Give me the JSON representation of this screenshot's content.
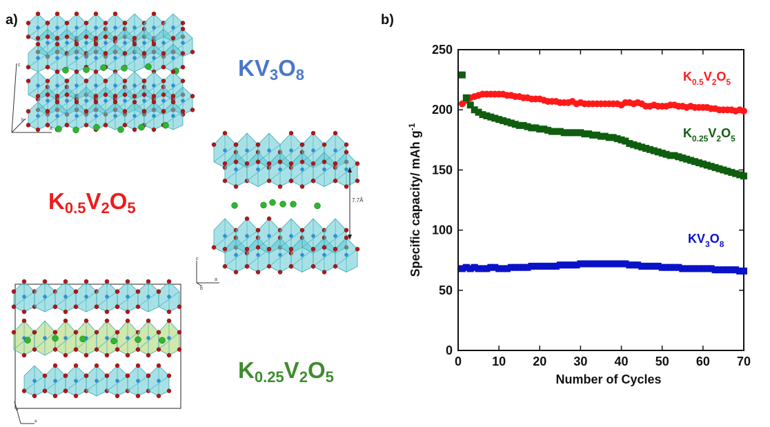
{
  "panels": {
    "a": "a)",
    "b": "b)"
  },
  "structures": {
    "kv3o8": {
      "base": "KV",
      "s1": "3",
      "o": "O",
      "s2": "8",
      "color": "#4a78c8"
    },
    "k05": {
      "k": "K",
      "s1": "0.5",
      "v": "V",
      "s2": "2",
      "o": "O",
      "s3": "5",
      "color": "#ee1c1c"
    },
    "k025": {
      "k": "K",
      "s1": "0.25",
      "v": "V",
      "s2": "2",
      "o": "O",
      "s3": "5",
      "color": "#3f8c2f"
    },
    "spacing_label": "7.7Å",
    "axes_labels": {
      "a": "a",
      "b": "b",
      "c": "c"
    }
  },
  "chart_data": {
    "type": "scatter",
    "xlabel": "Number of Cycles",
    "ylabel": "Specific capacity/ mAh g",
    "ylabel_sup": "-1",
    "xlim": [
      0,
      70
    ],
    "ylim": [
      0,
      250
    ],
    "xticks": [
      0,
      10,
      20,
      30,
      40,
      50,
      60,
      70
    ],
    "yticks": [
      0,
      50,
      100,
      150,
      200,
      250
    ],
    "series": [
      {
        "name": "K0.5V2O5",
        "color": "#ff1a1a",
        "marker": "circle",
        "x": [
          1,
          2,
          3,
          4,
          5,
          6,
          7,
          8,
          9,
          10,
          11,
          12,
          13,
          14,
          15,
          16,
          17,
          18,
          19,
          20,
          21,
          22,
          23,
          24,
          25,
          26,
          27,
          28,
          29,
          30,
          31,
          32,
          33,
          34,
          35,
          36,
          37,
          38,
          39,
          40,
          41,
          42,
          43,
          44,
          45,
          46,
          47,
          48,
          49,
          50,
          51,
          52,
          53,
          54,
          55,
          56,
          57,
          58,
          59,
          60,
          61,
          62,
          63,
          64,
          65,
          66,
          67,
          68,
          69,
          70
        ],
        "values": [
          205,
          208,
          210,
          211,
          212,
          213,
          213,
          213,
          213,
          213,
          213,
          212,
          212,
          211,
          211,
          210,
          210,
          209,
          209,
          209,
          208,
          207,
          207,
          207,
          206,
          206,
          206,
          207,
          205,
          206,
          205,
          205,
          205,
          205,
          205,
          205,
          205,
          205,
          205,
          204,
          206,
          206,
          205,
          206,
          205,
          203,
          203,
          204,
          203,
          203,
          203,
          204,
          204,
          203,
          203,
          202,
          203,
          202,
          202,
          202,
          202,
          201,
          201,
          200,
          200,
          200,
          200,
          199,
          200,
          199
        ],
        "legend_parts": {
          "k": "K",
          "s1": "0.5",
          "v": "V",
          "s2": "2",
          "o": "O",
          "s3": "5"
        }
      },
      {
        "name": "K0.25V2O5",
        "color": "#0f5e0f",
        "marker": "square",
        "x": [
          1,
          2,
          3,
          4,
          5,
          6,
          7,
          8,
          9,
          10,
          11,
          12,
          13,
          14,
          15,
          16,
          17,
          18,
          19,
          20,
          21,
          22,
          23,
          24,
          25,
          26,
          27,
          28,
          29,
          30,
          31,
          32,
          33,
          34,
          35,
          36,
          37,
          38,
          39,
          40,
          41,
          42,
          43,
          44,
          45,
          46,
          47,
          48,
          49,
          50,
          51,
          52,
          53,
          54,
          55,
          56,
          57,
          58,
          59,
          60,
          61,
          62,
          63,
          64,
          65,
          66,
          67,
          68,
          69,
          70
        ],
        "values": [
          229,
          210,
          204,
          200,
          198,
          196,
          195,
          194,
          193,
          192,
          191,
          190,
          189,
          188,
          187,
          187,
          186,
          185,
          185,
          184,
          184,
          183,
          182,
          182,
          182,
          181,
          181,
          181,
          181,
          181,
          180,
          180,
          179,
          179,
          178,
          178,
          177,
          177,
          176,
          175,
          174,
          172,
          171,
          170,
          169,
          168,
          167,
          166,
          165,
          164,
          163,
          162,
          162,
          161,
          160,
          159,
          158,
          157,
          156,
          155,
          154,
          153,
          152,
          151,
          150,
          149,
          148,
          147,
          146,
          145
        ],
        "legend_parts": {
          "k": "K",
          "s1": "0.25",
          "v": "V",
          "s2": "2",
          "o": "O",
          "s3": "5"
        }
      },
      {
        "name": "KV3O8",
        "color": "#0a12c8",
        "marker": "square",
        "x": [
          1,
          2,
          3,
          4,
          5,
          6,
          7,
          8,
          9,
          10,
          11,
          12,
          13,
          14,
          15,
          16,
          17,
          18,
          19,
          20,
          21,
          22,
          23,
          24,
          25,
          26,
          27,
          28,
          29,
          30,
          31,
          32,
          33,
          34,
          35,
          36,
          37,
          38,
          39,
          40,
          41,
          42,
          43,
          44,
          45,
          46,
          47,
          48,
          49,
          50,
          51,
          52,
          53,
          54,
          55,
          56,
          57,
          58,
          59,
          60,
          61,
          62,
          63,
          64,
          65,
          66,
          67,
          68,
          69,
          70
        ],
        "values": [
          68,
          69,
          68,
          69,
          68,
          68,
          68,
          69,
          69,
          68,
          68,
          68,
          69,
          69,
          69,
          69,
          69,
          70,
          70,
          70,
          70,
          70,
          70,
          70,
          71,
          71,
          71,
          71,
          71,
          72,
          72,
          72,
          72,
          72,
          72,
          72,
          72,
          72,
          72,
          72,
          72,
          71,
          71,
          71,
          70,
          70,
          70,
          70,
          70,
          69,
          69,
          69,
          69,
          69,
          68,
          68,
          68,
          68,
          68,
          68,
          68,
          68,
          67,
          67,
          67,
          67,
          67,
          67,
          66,
          66
        ],
        "legend_parts": {
          "k": "KV",
          "s1": "3",
          "o": "O",
          "s2": "8"
        }
      }
    ]
  }
}
